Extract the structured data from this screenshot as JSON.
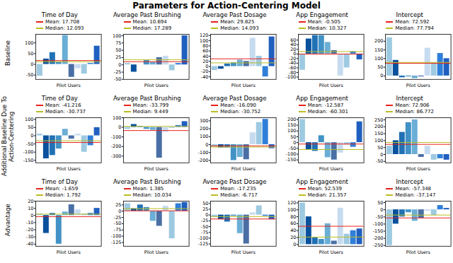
{
  "title": "Parameters for Action-Centering Model",
  "chart_data": [
    {
      "type": "bar",
      "title": "Time of Day",
      "y_label": "Baseline",
      "x_label": "Pilot Users",
      "tick_labels": "y",
      "categories": [
        null,
        null,
        null,
        null,
        null,
        null,
        null,
        null,
        null,
        null
      ],
      "values": [
        -55,
        25,
        55,
        12,
        135,
        -60,
        -20,
        -45,
        5,
        85
      ],
      "colors": [
        "#9ecae1",
        "#08519c",
        "#2171b5",
        "#4292c6",
        "#6baed6",
        "#4a6fa5",
        "#c6dbef",
        "#9ecae1",
        "#2f7fd8",
        "#1f5fbf"
      ],
      "ylim": [
        -70,
        140
      ],
      "yticks": [
        -50,
        0,
        50,
        100
      ],
      "reference_lines": [
        {
          "label": "Mean: 17.708",
          "value": 17.708,
          "color": "#e8221c"
        },
        {
          "label": "Median: 12.093",
          "value": 12.093,
          "color": "#bcbd22"
        }
      ]
    },
    {
      "type": "bar",
      "title": "Average Past Brushing",
      "x_label": "Pilot Users",
      "tick_labels": "y",
      "categories": [
        null,
        null,
        null,
        null,
        null,
        null,
        null,
        null,
        null,
        null
      ],
      "values": [
        5,
        -25,
        0,
        15,
        10,
        25,
        30,
        -20,
        5,
        100
      ],
      "colors": [
        "#9ecae1",
        "#08519c",
        "#2171b5",
        "#4292c6",
        "#6baed6",
        "#4a6fa5",
        "#c6dbef",
        "#9ecae1",
        "#2f7fd8",
        "#1f5fbf"
      ],
      "ylim": [
        -50,
        105
      ],
      "yticks": [
        -50,
        -25,
        0,
        25,
        50,
        75,
        100
      ],
      "reference_lines": [
        {
          "label": "Mean: 10.694",
          "value": 10.694,
          "color": "#e8221c"
        },
        {
          "label": "Median: 17.289",
          "value": 17.289,
          "color": "#bcbd22"
        }
      ]
    },
    {
      "type": "bar",
      "title": "Average Past Dosage",
      "x_label": "Pilot Users",
      "tick_labels": "y",
      "categories": [
        null,
        null,
        null,
        null,
        null,
        null,
        null,
        null,
        null,
        null
      ],
      "values": [
        -15,
        -10,
        10,
        15,
        25,
        20,
        110,
        40,
        -40,
        115
      ],
      "colors": [
        "#9ecae1",
        "#08519c",
        "#2171b5",
        "#4292c6",
        "#6baed6",
        "#4a6fa5",
        "#c6dbef",
        "#9ecae1",
        "#2f7fd8",
        "#1f5fbf"
      ],
      "ylim": [
        -50,
        125
      ],
      "yticks": [
        -40,
        -20,
        0,
        20,
        40,
        60,
        80,
        100,
        120
      ],
      "reference_lines": [
        {
          "label": "Mean: 29.825",
          "value": 29.825,
          "color": "#e8221c"
        },
        {
          "label": "Median: 14.093",
          "value": 14.093,
          "color": "#bcbd22"
        }
      ]
    },
    {
      "type": "bar",
      "title": "App Engagement",
      "x_label": "Pilot Users",
      "tick_labels": "y",
      "categories": [
        null,
        null,
        null,
        null,
        null,
        null,
        null,
        null,
        null,
        null
      ],
      "values": [
        -70,
        65,
        80,
        80,
        50,
        15,
        -95,
        -60,
        10,
        -25
      ],
      "colors": [
        "#9ecae1",
        "#08519c",
        "#2171b5",
        "#4292c6",
        "#6baed6",
        "#4a6fa5",
        "#c6dbef",
        "#9ecae1",
        "#2f7fd8",
        "#1f5fbf"
      ],
      "ylim": [
        -110,
        85
      ],
      "yticks": [
        -100,
        -80,
        -60,
        -40,
        -20,
        0,
        20,
        40,
        60
      ],
      "reference_lines": [
        {
          "label": "Mean: -0.505",
          "value": -0.505,
          "color": "#e8221c"
        },
        {
          "label": "Median: 10.327",
          "value": 10.327,
          "color": "#bcbd22"
        }
      ]
    },
    {
      "type": "bar",
      "title": "Intercept",
      "x_label": "Pilot Users",
      "tick_labels": "y",
      "categories": [
        null,
        null,
        null,
        null,
        null,
        null,
        null,
        null,
        null,
        null
      ],
      "values": [
        220,
        90,
        -10,
        -5,
        -15,
        -5,
        160,
        75,
        130,
        100
      ],
      "colors": [
        "#9ecae1",
        "#08519c",
        "#2171b5",
        "#4292c6",
        "#6baed6",
        "#4a6fa5",
        "#c6dbef",
        "#9ecae1",
        "#2f7fd8",
        "#1f5fbf"
      ],
      "ylim": [
        -20,
        240
      ],
      "yticks": [
        0,
        50,
        100,
        150,
        200
      ],
      "reference_lines": [
        {
          "label": "Mean: 72.592",
          "value": 72.592,
          "color": "#e8221c"
        },
        {
          "label": "Median: 77.794",
          "value": 77.794,
          "color": "#bcbd22"
        }
      ]
    },
    {
      "type": "bar",
      "title": "Time of Day",
      "y_label": "Additional Baseline Due To Action-Centering",
      "x_label": "Pilot Users",
      "tick_labels": "y",
      "categories": [
        null,
        null,
        null,
        null,
        null,
        null,
        null,
        null,
        null,
        null
      ],
      "values": [
        10,
        -140,
        -120,
        -80,
        40,
        -20,
        10,
        -100,
        -60,
        50
      ],
      "colors": [
        "#9ecae1",
        "#08519c",
        "#2171b5",
        "#4292c6",
        "#6baed6",
        "#4a6fa5",
        "#c6dbef",
        "#9ecae1",
        "#2f7fd8",
        "#1f5fbf"
      ],
      "ylim": [
        -165,
        110
      ],
      "yticks": [
        -150,
        -100,
        -50,
        0,
        50,
        100
      ],
      "reference_lines": [
        {
          "label": "Mean: -41.216",
          "value": -41.216,
          "color": "#e8221c"
        },
        {
          "label": "Median: -30.737",
          "value": -30.737,
          "color": "#bcbd22"
        }
      ]
    },
    {
      "type": "bar",
      "title": "Average Past Brushing",
      "x_label": "Pilot Users",
      "tick_labels": "y",
      "categories": [
        null,
        null,
        null,
        null,
        null,
        null,
        null,
        null,
        null,
        null
      ],
      "values": [
        -20,
        30,
        10,
        -20,
        -30,
        -320,
        -50,
        -10,
        20,
        60
      ],
      "colors": [
        "#9ecae1",
        "#08519c",
        "#2171b5",
        "#4292c6",
        "#6baed6",
        "#4a6fa5",
        "#c6dbef",
        "#9ecae1",
        "#2f7fd8",
        "#1f5fbf"
      ],
      "ylim": [
        -370,
        100
      ],
      "yticks": [
        -300,
        -200,
        -100,
        0,
        100
      ],
      "reference_lines": [
        {
          "label": "Mean: -33.799",
          "value": -33.799,
          "color": "#e8221c"
        },
        {
          "label": "Median: 9.449",
          "value": 9.449,
          "color": "#bcbd22"
        }
      ]
    },
    {
      "type": "bar",
      "title": "Average Past Dosage",
      "x_label": "Pilot Users",
      "tick_labels": "y",
      "categories": [
        null,
        null,
        null,
        null,
        null,
        null,
        null,
        null,
        null,
        null
      ],
      "values": [
        -30,
        -40,
        -40,
        -200,
        -160,
        -190,
        150,
        280,
        320,
        -50
      ],
      "colors": [
        "#9ecae1",
        "#08519c",
        "#2171b5",
        "#4292c6",
        "#6baed6",
        "#4a6fa5",
        "#c6dbef",
        "#9ecae1",
        "#2f7fd8",
        "#1f5fbf"
      ],
      "ylim": [
        -230,
        340
      ],
      "yticks": [
        -200,
        -100,
        0,
        100,
        200,
        300
      ],
      "reference_lines": [
        {
          "label": "Mean: -16.090",
          "value": -16.09,
          "color": "#e8221c"
        },
        {
          "label": "Median: -30.752",
          "value": -30.752,
          "color": "#bcbd22"
        }
      ]
    },
    {
      "type": "bar",
      "title": "App Engagement",
      "x_label": "Pilot Users",
      "tick_labels": "y",
      "categories": [
        null,
        null,
        null,
        null,
        null,
        null,
        null,
        null,
        null,
        null
      ],
      "values": [
        200,
        -60,
        -75,
        60,
        -130,
        -150,
        -90,
        -20,
        -40,
        180
      ],
      "colors": [
        "#9ecae1",
        "#08519c",
        "#2171b5",
        "#4292c6",
        "#6baed6",
        "#4a6fa5",
        "#c6dbef",
        "#9ecae1",
        "#2f7fd8",
        "#1f5fbf"
      ],
      "ylim": [
        -175,
        215
      ],
      "yticks": [
        -150,
        -100,
        -50,
        0,
        50,
        100,
        150,
        200
      ],
      "reference_lines": [
        {
          "label": "Mean: -12.587",
          "value": -12.587,
          "color": "#e8221c"
        },
        {
          "label": "Median: -60.301",
          "value": -60.301,
          "color": "#bcbd22"
        }
      ]
    },
    {
      "type": "bar",
      "title": "Intercept",
      "x_label": "Pilot Users",
      "tick_labels": "y",
      "categories": [
        null,
        null,
        null,
        null,
        null,
        null,
        null,
        null,
        null,
        null
      ],
      "values": [
        60,
        100,
        160,
        230,
        250,
        -20,
        60,
        -40,
        -30,
        -40
      ],
      "colors": [
        "#9ecae1",
        "#08519c",
        "#2171b5",
        "#4292c6",
        "#6baed6",
        "#4a6fa5",
        "#c6dbef",
        "#9ecae1",
        "#2f7fd8",
        "#1f5fbf"
      ],
      "ylim": [
        -60,
        265
      ],
      "yticks": [
        -50,
        0,
        50,
        100,
        150,
        200,
        250
      ],
      "reference_lines": [
        {
          "label": "Mean: 72.906",
          "value": 72.906,
          "color": "#e8221c"
        },
        {
          "label": "Median: 86.772",
          "value": 86.772,
          "color": "#bcbd22"
        }
      ]
    },
    {
      "type": "bar",
      "title": "Time of Day",
      "y_label": "Advantage",
      "x_label": "Pilot Users",
      "tick_labels": "y",
      "categories": [
        null,
        null,
        null,
        null,
        null,
        null,
        null,
        null,
        null,
        null
      ],
      "values": [
        2,
        -25,
        3,
        -40,
        5,
        15,
        8,
        2,
        3,
        10
      ],
      "colors": [
        "#9ecae1",
        "#08519c",
        "#2171b5",
        "#4292c6",
        "#6baed6",
        "#4a6fa5",
        "#c6dbef",
        "#9ecae1",
        "#2f7fd8",
        "#1f5fbf"
      ],
      "ylim": [
        -43,
        20
      ],
      "yticks": [
        -40,
        -30,
        -20,
        -10,
        0,
        10,
        20
      ],
      "reference_lines": [
        {
          "label": "Mean: -1.659",
          "value": -1.659,
          "color": "#e8221c"
        },
        {
          "label": "Median: 1.792",
          "value": 1.792,
          "color": "#bcbd22"
        }
      ]
    },
    {
      "type": "bar",
      "title": "Average Past Brushing",
      "x_label": "Pilot Users",
      "tick_labels": "y",
      "categories": [
        null,
        null,
        null,
        null,
        null,
        null,
        null,
        null,
        null,
        null
      ],
      "values": [
        30,
        10,
        25,
        15,
        -40,
        -60,
        20,
        -110,
        30,
        35
      ],
      "colors": [
        "#9ecae1",
        "#08519c",
        "#2171b5",
        "#4292c6",
        "#6baed6",
        "#4a6fa5",
        "#c6dbef",
        "#9ecae1",
        "#2f7fd8",
        "#1f5fbf"
      ],
      "ylim": [
        -140,
        40
      ],
      "yticks": [
        -125,
        -100,
        -75,
        -50,
        -25,
        0,
        25
      ],
      "reference_lines": [
        {
          "label": "Mean: 1.385",
          "value": 1.385,
          "color": "#e8221c"
        },
        {
          "label": "Median: 10.034",
          "value": 10.034,
          "color": "#bcbd22"
        }
      ]
    },
    {
      "type": "bar",
      "title": "Average Past Dosage",
      "x_label": "Pilot Users",
      "tick_labels": "y",
      "categories": [
        null,
        null,
        null,
        null,
        null,
        null,
        null,
        null,
        null,
        null
      ],
      "values": [
        -10,
        -20,
        -30,
        -5,
        -80,
        -125,
        10,
        40,
        -5,
        -20
      ],
      "colors": [
        "#9ecae1",
        "#08519c",
        "#2171b5",
        "#4292c6",
        "#6baed6",
        "#4a6fa5",
        "#c6dbef",
        "#9ecae1",
        "#2f7fd8",
        "#1f5fbf"
      ],
      "ylim": [
        -135,
        60
      ],
      "yticks": [
        -125,
        -100,
        -75,
        -50,
        -25,
        0,
        25,
        50
      ],
      "reference_lines": [
        {
          "label": "Mean: -17.235",
          "value": -17.235,
          "color": "#e8221c"
        },
        {
          "label": "Median: -6.717",
          "value": -6.717,
          "color": "#bcbd22"
        }
      ]
    },
    {
      "type": "bar",
      "title": "App Engagement",
      "x_label": "Pilot Users",
      "tick_labels": "y",
      "categories": [
        null,
        null,
        null,
        null,
        null,
        null,
        null,
        null,
        null,
        null
      ],
      "values": [
        120,
        80,
        20,
        15,
        60,
        10,
        105,
        30,
        40,
        45
      ],
      "colors": [
        "#9ecae1",
        "#08519c",
        "#2171b5",
        "#4292c6",
        "#6baed6",
        "#4a6fa5",
        "#c6dbef",
        "#9ecae1",
        "#2f7fd8",
        "#1f5fbf"
      ],
      "ylim": [
        -5,
        125
      ],
      "yticks": [
        0,
        20,
        40,
        60,
        80,
        100,
        120
      ],
      "reference_lines": [
        {
          "label": "Mean: 52.539",
          "value": 52.539,
          "color": "#e8221c"
        },
        {
          "label": "Median: 21.357",
          "value": 21.357,
          "color": "#bcbd22"
        }
      ]
    },
    {
      "type": "bar",
      "title": "Intercept",
      "x_label": "Pilot Users",
      "tick_labels": "y",
      "categories": [
        null,
        null,
        null,
        null,
        null,
        null,
        null,
        null,
        null,
        null
      ],
      "values": [
        -250,
        -100,
        -50,
        -20,
        -80,
        -60,
        -10,
        -40,
        30,
        10
      ],
      "colors": [
        "#9ecae1",
        "#08519c",
        "#2171b5",
        "#4292c6",
        "#6baed6",
        "#4a6fa5",
        "#c6dbef",
        "#9ecae1",
        "#2f7fd8",
        "#1f5fbf"
      ],
      "ylim": [
        -255,
        60
      ],
      "yticks": [
        -250,
        -200,
        -150,
        -100,
        -50,
        0,
        50
      ],
      "reference_lines": [
        {
          "label": "Mean: -57.348",
          "value": -57.348,
          "color": "#e8221c"
        },
        {
          "label": "Median: -37.147",
          "value": -37.147,
          "color": "#bcbd22"
        }
      ]
    }
  ]
}
